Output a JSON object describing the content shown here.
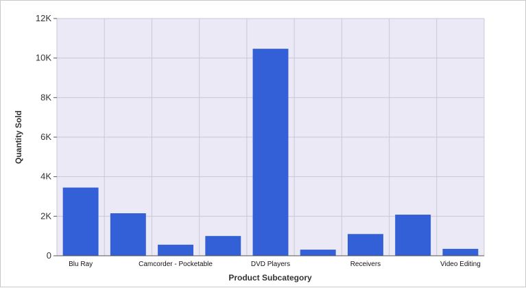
{
  "chart_data": {
    "type": "bar",
    "xlabel": "Product Subcategory",
    "ylabel": "Quantity Sold",
    "categories": [
      "Blu Ray",
      "",
      "Camcorder - Pocketable",
      "",
      "DVD Players",
      "",
      "Receivers",
      "",
      "Video Editing"
    ],
    "values": [
      3450,
      2150,
      560,
      1000,
      10470,
      310,
      1100,
      2080,
      350
    ],
    "ylim": [
      0,
      12000
    ],
    "yticks": [
      0,
      2000,
      4000,
      6000,
      8000,
      10000,
      12000
    ],
    "ytick_labels": [
      "0",
      "2K",
      "4K",
      "6K",
      "8K",
      "10K",
      "12K"
    ],
    "grid": true,
    "legend": "none",
    "colors": {
      "bar": "#3360d6",
      "plot_background": "#ebe9f5",
      "grid": "#c8c8d8"
    }
  }
}
